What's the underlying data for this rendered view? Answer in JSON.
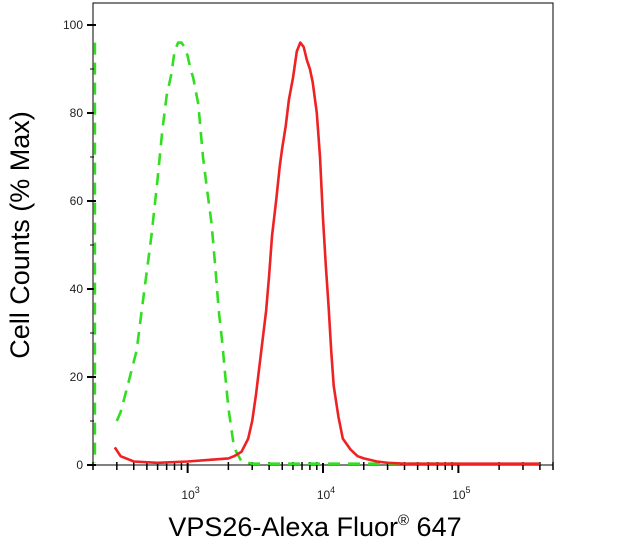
{
  "chart_data": {
    "type": "line",
    "title": "",
    "xlabel": "VPS26-Alexa Fluor",
    "xlabel_superscript": "®",
    "xlabel_suffix": " 647",
    "ylabel": "Cell Counts (% Max)",
    "x_scale": "log",
    "xlim": [
      200,
      500000
    ],
    "ylim": [
      0,
      105
    ],
    "y_ticks": [
      0,
      20,
      40,
      60,
      80,
      100
    ],
    "y_tick_labels": [
      "0",
      "20",
      "40",
      "60",
      "80",
      "100"
    ],
    "x_ticks": [
      1000,
      10000,
      100000
    ],
    "x_tick_labels": [
      {
        "base": "10",
        "exp": "3"
      },
      {
        "base": "10",
        "exp": "4"
      },
      {
        "base": "10",
        "exp": "5"
      }
    ],
    "grid": false,
    "legend": "none",
    "series": [
      {
        "style": "dashed",
        "color": "#33dd22",
        "x": [
          300,
          320,
          360,
          420,
          480,
          540,
          600,
          650,
          700,
          760,
          800,
          850,
          900,
          950,
          1000,
          1050,
          1100,
          1200,
          1300,
          1400,
          1500,
          1600,
          1700,
          1800,
          1900,
          2000,
          2200,
          2500,
          3000,
          5000,
          10000,
          30000,
          100000
        ],
        "y": [
          10,
          12,
          18,
          26,
          40,
          52,
          65,
          76,
          84,
          89,
          94,
          96,
          96,
          95,
          93,
          90,
          88,
          82,
          70,
          62,
          55,
          45,
          35,
          28,
          20,
          13,
          4,
          0.8,
          0.3,
          0.3,
          0.3,
          0.3,
          0.3
        ]
      },
      {
        "style": "solid",
        "color": "#ee2222",
        "x": [
          290,
          320,
          400,
          600,
          1000,
          1500,
          2000,
          2200,
          2500,
          2800,
          3000,
          3200,
          3500,
          3800,
          4000,
          4200,
          4500,
          4800,
          5000,
          5300,
          5600,
          6000,
          6400,
          6800,
          7200,
          7600,
          8000,
          8400,
          9000,
          9500,
          10000,
          10500,
          11000,
          11500,
          12000,
          13000,
          14000,
          16000,
          18000,
          20000,
          25000,
          30000,
          40000,
          60000,
          100000,
          200000,
          400000
        ],
        "y": [
          4,
          2,
          0.8,
          0.5,
          0.8,
          1.2,
          1.5,
          2,
          3,
          6,
          10,
          16,
          26,
          35,
          43,
          52,
          60,
          68,
          72,
          77,
          83,
          88,
          94,
          96,
          95,
          92,
          90,
          87,
          80,
          70,
          56,
          45,
          36,
          26,
          18,
          11,
          6,
          3.5,
          2,
          1.5,
          0.8,
          0.5,
          0.3,
          0.3,
          0.3,
          0.3,
          0.3
        ]
      }
    ]
  }
}
